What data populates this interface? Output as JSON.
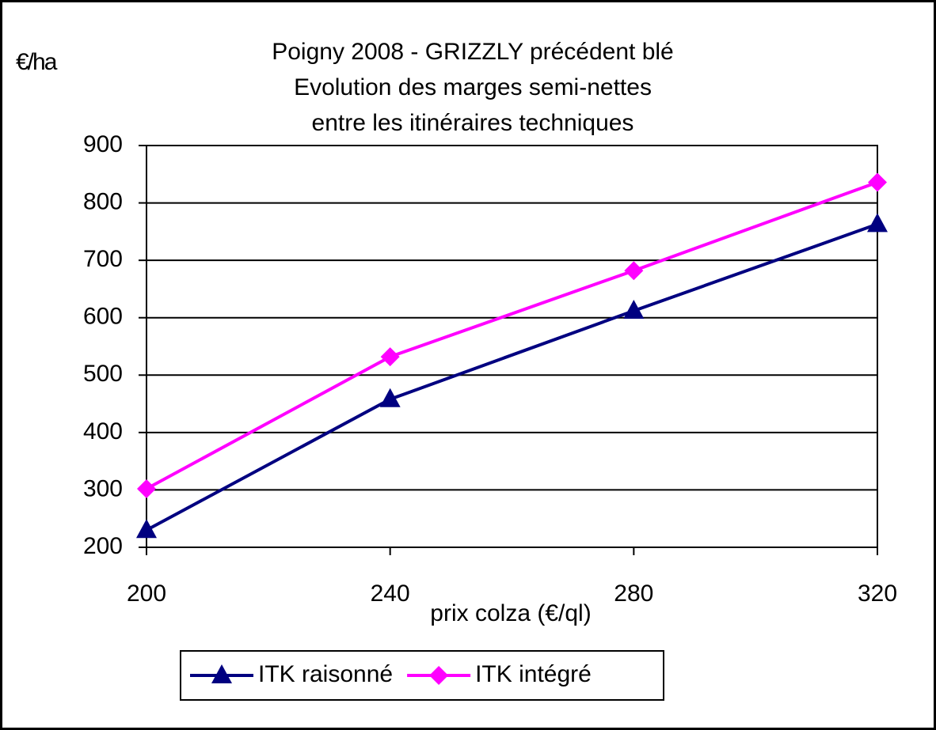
{
  "chart_data": {
    "type": "line",
    "title": [
      "Poigny 2008 - GRIZZLY précédent blé",
      "Evolution des marges semi-nettes",
      "entre les itinéraires techniques"
    ],
    "y_label": "€/ha",
    "x_label": "prix colza (€/ql)",
    "x": [
      200,
      240,
      280,
      320
    ],
    "xlim": [
      200,
      320
    ],
    "xticks": [
      200,
      240,
      280,
      320
    ],
    "ylim": [
      200,
      900
    ],
    "yticks": [
      200,
      300,
      400,
      500,
      600,
      700,
      800,
      900
    ],
    "grid": true,
    "legend": "bottom",
    "series": [
      {
        "name": "ITK raisonné",
        "color": "#000080",
        "marker": "triangle",
        "values": [
          230,
          458,
          612,
          763
        ]
      },
      {
        "name": "ITK intégré",
        "color": "#ff00ff",
        "marker": "diamond",
        "values": [
          302,
          532,
          682,
          836
        ]
      }
    ]
  }
}
